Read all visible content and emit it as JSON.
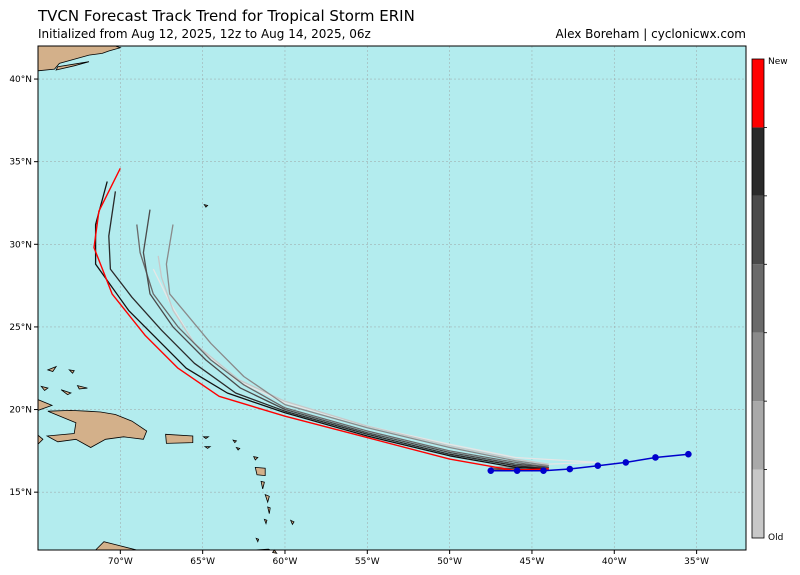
{
  "header": {
    "title": "TVCN Forecast Track Trend for Tropical Storm ERIN",
    "subtitle": "Initialized from Aug 12, 2025, 12z to Aug 14, 2025, 06z",
    "credit": "Alex Boreham | cyclonicwx.com"
  },
  "colors": {
    "ocean": "#b3ecee",
    "land": "#d3b08a",
    "newest_track": "#ff0000",
    "observed_track": "#0000cc"
  },
  "map": {
    "lon_range": [
      -75,
      -32
    ],
    "lat_range": [
      11.5,
      42
    ],
    "lon_ticks": [
      {
        "value": -70,
        "label": "70°W"
      },
      {
        "value": -65,
        "label": "65°W"
      },
      {
        "value": -60,
        "label": "60°W"
      },
      {
        "value": -55,
        "label": "55°W"
      },
      {
        "value": -50,
        "label": "50°W"
      },
      {
        "value": -45,
        "label": "45°W"
      },
      {
        "value": -40,
        "label": "40°W"
      },
      {
        "value": -35,
        "label": "35°W"
      }
    ],
    "lat_ticks": [
      {
        "value": 15,
        "label": "15°N"
      },
      {
        "value": 20,
        "label": "20°N"
      },
      {
        "value": 25,
        "label": "25°N"
      },
      {
        "value": 30,
        "label": "30°N"
      },
      {
        "value": 35,
        "label": "35°N"
      },
      {
        "value": 40,
        "label": "40°N"
      }
    ]
  },
  "colorbar": {
    "top_label": "New",
    "bottom_label": "Old",
    "colors": [
      "#c8c8c8",
      "#a9a9a9",
      "#8a8a8a",
      "#6a6a6a",
      "#4a4a4a",
      "#2a2a2a",
      "#ff0000"
    ]
  },
  "chart_data": {
    "type": "line",
    "title": "TVCN Forecast Track Trend for Tropical Storm ERIN",
    "xlabel": "",
    "ylabel": "",
    "xlim": [
      -75,
      -32
    ],
    "ylim": [
      11.5,
      42
    ],
    "observed": {
      "points": [
        [
          -47.5,
          16.3
        ],
        [
          -45.9,
          16.3
        ],
        [
          -44.3,
          16.3
        ],
        [
          -42.7,
          16.4
        ],
        [
          -41.0,
          16.6
        ],
        [
          -39.3,
          16.8
        ],
        [
          -37.5,
          17.1
        ],
        [
          -35.5,
          17.3
        ]
      ]
    },
    "series": [
      {
        "color": "#e6e6e6",
        "points": [
          [
            -47.5,
            16.5
          ],
          [
            -44,
            16.7
          ],
          [
            -41,
            16.8
          ],
          [
            -46,
            17.1
          ],
          [
            -50,
            17.9
          ],
          [
            -55,
            19.0
          ],
          [
            -60,
            20.4
          ],
          [
            -63,
            21.8
          ],
          [
            -65.5,
            24.0
          ],
          [
            -67,
            26.5
          ],
          [
            -68,
            28.5
          ]
        ]
      },
      {
        "color": "#c8c8c8",
        "points": [
          [
            -47.5,
            16.5
          ],
          [
            -44,
            16.7
          ],
          [
            -46,
            17.0
          ],
          [
            -50,
            17.8
          ],
          [
            -55,
            19.0
          ],
          [
            -60,
            20.5
          ],
          [
            -62.8,
            21.8
          ],
          [
            -65.5,
            24.0
          ],
          [
            -66.8,
            26.0
          ],
          [
            -67.5,
            28.0
          ],
          [
            -67.7,
            29.3
          ]
        ]
      },
      {
        "color": "#8a8a8a",
        "points": [
          [
            -47.5,
            16.5
          ],
          [
            -44,
            16.6
          ],
          [
            -46,
            16.9
          ],
          [
            -50,
            17.7
          ],
          [
            -55,
            18.9
          ],
          [
            -60,
            20.3
          ],
          [
            -62.5,
            22.0
          ],
          [
            -64.5,
            24.0
          ],
          [
            -66,
            25.8
          ],
          [
            -67,
            27.0
          ],
          [
            -67.2,
            28.8
          ],
          [
            -66.8,
            31.2
          ]
        ]
      },
      {
        "color": "#6a6a6a",
        "points": [
          [
            -47.5,
            16.4
          ],
          [
            -44,
            16.5
          ],
          [
            -46,
            16.8
          ],
          [
            -50,
            17.5
          ],
          [
            -55,
            18.7
          ],
          [
            -60,
            20.1
          ],
          [
            -62.5,
            21.5
          ],
          [
            -64.5,
            23.0
          ],
          [
            -66.5,
            25.0
          ],
          [
            -68,
            27.0
          ],
          [
            -68.8,
            29.5
          ],
          [
            -69,
            31.2
          ]
        ]
      },
      {
        "color": "#4a4a4a",
        "points": [
          [
            -47.5,
            16.4
          ],
          [
            -44,
            16.5
          ],
          [
            -46,
            16.7
          ],
          [
            -50,
            17.4
          ],
          [
            -55,
            18.6
          ],
          [
            -60,
            20.0
          ],
          [
            -62.7,
            21.3
          ],
          [
            -64.8,
            23.0
          ],
          [
            -66.8,
            25.0
          ],
          [
            -68.2,
            27.0
          ],
          [
            -68.6,
            29.5
          ],
          [
            -68.2,
            32.1
          ]
        ]
      },
      {
        "color": "#2a2a2a",
        "points": [
          [
            -47.5,
            16.3
          ],
          [
            -44,
            16.4
          ],
          [
            -46,
            16.6
          ],
          [
            -50,
            17.3
          ],
          [
            -55,
            18.5
          ],
          [
            -60,
            19.9
          ],
          [
            -63,
            21.0
          ],
          [
            -65.5,
            22.8
          ],
          [
            -67.5,
            24.8
          ],
          [
            -69.3,
            26.8
          ],
          [
            -70.6,
            28.5
          ],
          [
            -70.7,
            30.5
          ],
          [
            -70.3,
            33.2
          ]
        ]
      },
      {
        "color": "#111111",
        "points": [
          [
            -47.5,
            16.3
          ],
          [
            -44,
            16.4
          ],
          [
            -46,
            16.5
          ],
          [
            -50,
            17.2
          ],
          [
            -55,
            18.4
          ],
          [
            -60,
            19.8
          ],
          [
            -63.5,
            21.0
          ],
          [
            -66,
            22.5
          ],
          [
            -68,
            24.5
          ],
          [
            -69.5,
            26.0
          ],
          [
            -71.5,
            28.8
          ],
          [
            -71.5,
            31.2
          ],
          [
            -70.8,
            33.8
          ]
        ]
      },
      {
        "color": "#ff0000",
        "points": [
          [
            -47.5,
            16.3
          ],
          [
            -44,
            16.4
          ],
          [
            -46,
            16.3
          ],
          [
            -50,
            17.0
          ],
          [
            -55,
            18.3
          ],
          [
            -60,
            19.6
          ],
          [
            -64,
            20.8
          ],
          [
            -66.5,
            22.5
          ],
          [
            -68.5,
            24.5
          ],
          [
            -70.5,
            27.0
          ],
          [
            -71.6,
            29.8
          ],
          [
            -71.3,
            32.0
          ],
          [
            -70.0,
            34.6
          ]
        ]
      }
    ]
  }
}
